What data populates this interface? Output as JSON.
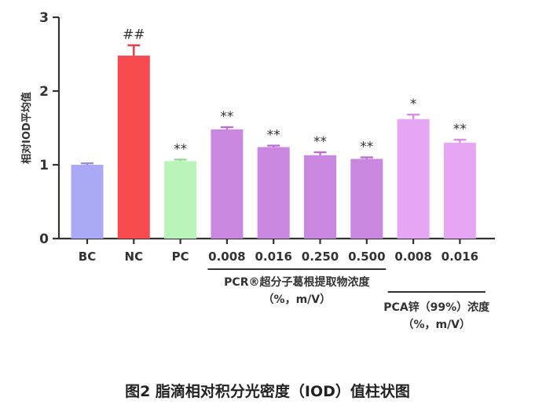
{
  "figure_caption": "图2  脂滴相对积分光密度（IOD）值柱状图",
  "chart_data": {
    "type": "bar",
    "ylabel": "相对IOD平均值",
    "ylim": [
      0,
      3
    ],
    "yticks": [
      0,
      1,
      2,
      3
    ],
    "categories": [
      "BC",
      "NC",
      "PC",
      "0.008",
      "0.016",
      "0.250",
      "0.500",
      "0.008",
      "0.016"
    ],
    "values": [
      1.0,
      2.48,
      1.05,
      1.48,
      1.24,
      1.13,
      1.08,
      1.62,
      1.3
    ],
    "errors": [
      0.02,
      0.14,
      0.02,
      0.03,
      0.02,
      0.04,
      0.02,
      0.06,
      0.04
    ],
    "significance": [
      "",
      "##",
      "**",
      "**",
      "**",
      "**",
      "**",
      "*",
      "**"
    ],
    "colors": [
      "#a9a9f5",
      "#f64a4f",
      "#b9f5b9",
      "#c987e0",
      "#c987e0",
      "#c987e0",
      "#c987e0",
      "#e7a6f4",
      "#e7a6f4"
    ],
    "error_colors": [
      "#9090e6",
      "#e8373c",
      "#8fdc8f",
      "#b96fd3",
      "#b96fd3",
      "#b96fd3",
      "#b96fd3",
      "#d88be8",
      "#d88be8"
    ],
    "groups": [
      {
        "label": "PCR®超分子葛根提取物浓度",
        "unit": "（%，m/V）",
        "first": 3,
        "last": 6
      },
      {
        "label": "PCA锌（99%）浓度",
        "unit": "（%，m/V）",
        "first": 7,
        "last": 8
      }
    ]
  }
}
